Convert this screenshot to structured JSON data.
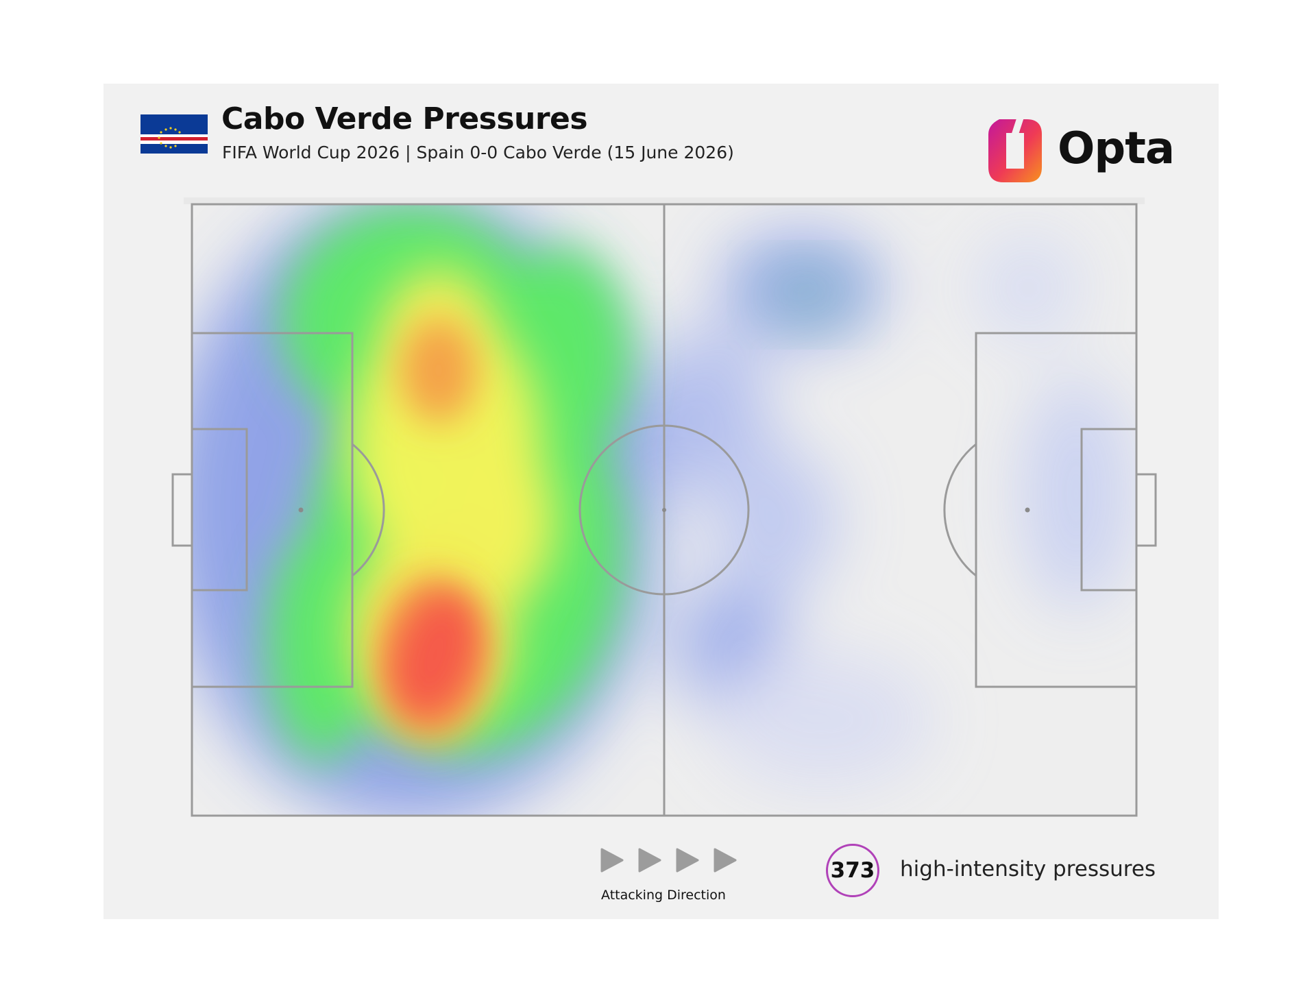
{
  "header": {
    "title": "Cabo Verde Pressures",
    "subtitle": "FIFA World Cup 2026 | Spain 0-0 Cabo Verde (15 June 2026)"
  },
  "brand": {
    "logo_text": "Opta"
  },
  "footer": {
    "direction_label": "Attacking Direction",
    "pressure_count": "373",
    "pressure_label": "high-intensity pressures"
  },
  "colors": {
    "card_bg": "#f1f1f1",
    "pitch_lines": "#9a9a9a",
    "count_ring": "#b041b8",
    "flag_blue": "#0b3a96",
    "flag_red": "#d21f2e"
  },
  "icons": [
    "cabo-verde-flag",
    "opta-logo-icon",
    "attacking-direction-arrow-icon"
  ]
}
